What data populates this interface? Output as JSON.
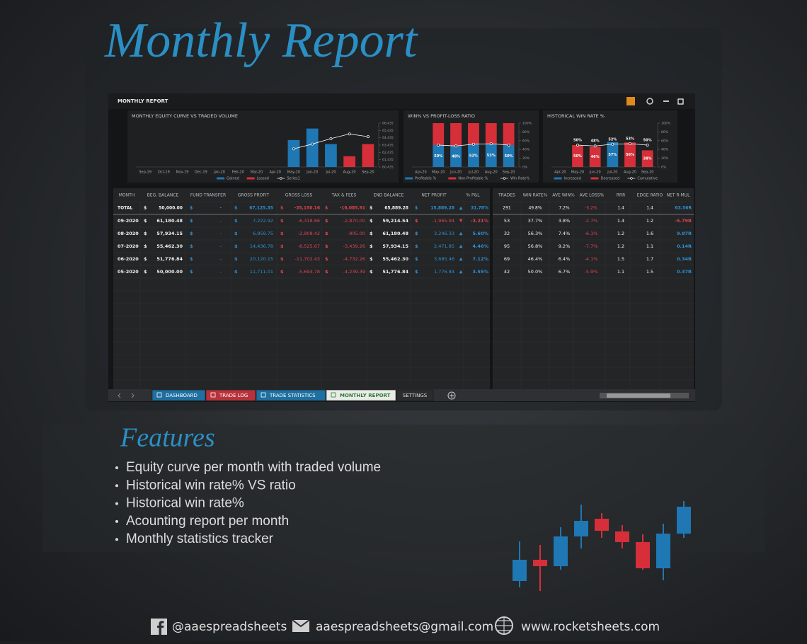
{
  "header": {
    "title": "Monthly Report"
  },
  "window": {
    "title": "MONTHLY REPORT"
  },
  "charts": [
    {
      "type": "combo",
      "title": "MONTHLY EQUITY CURVE VS TRADED VOLUME",
      "categories": [
        "Sep-19",
        "Oct-19",
        "Nov-19",
        "Dec-19",
        "Jan-20",
        "Feb-20",
        "Mar-20",
        "Apr-20",
        "May-20",
        "Jun-20",
        "Jul-20",
        "Aug-20",
        "Sep-20"
      ],
      "ylim": [
        60435,
        66435
      ],
      "yticks": [
        {
          "value": 60435,
          "label": "60,435"
        },
        {
          "value": 61435,
          "label": "61,435"
        },
        {
          "value": 62435,
          "label": "62,435"
        },
        {
          "value": 63435,
          "label": "63,435"
        },
        {
          "value": 64435,
          "label": "64,435"
        },
        {
          "value": 65435,
          "label": "65,435"
        },
        {
          "value": 66435,
          "label": "66,435"
        }
      ],
      "stacked": false,
      "series": [
        {
          "name": "Gained",
          "kind": "bar",
          "color": "#1f77b4",
          "values": [
            null,
            null,
            null,
            null,
            null,
            null,
            null,
            null,
            64127,
            65700,
            63575,
            null,
            null
          ]
        },
        {
          "name": "Lossed",
          "kind": "bar",
          "color": "#d62f3a",
          "values": [
            null,
            null,
            null,
            null,
            null,
            null,
            null,
            null,
            null,
            null,
            null,
            61910,
            63575
          ]
        },
        {
          "name": "Series1",
          "kind": "line",
          "color": "#ffffff",
          "values": [
            null,
            null,
            null,
            null,
            null,
            null,
            null,
            null,
            62925,
            63575,
            64315,
            64955,
            64585
          ]
        }
      ]
    },
    {
      "type": "combo",
      "title": "WIN% VS PROFIT-LOSS RATIO",
      "categories": [
        "Apr-20",
        "May-20",
        "Jun-20",
        "Jul-20",
        "Aug-20",
        "Sep-20"
      ],
      "ylim": [
        0,
        100
      ],
      "yticks": [
        {
          "value": 0,
          "label": "0%"
        },
        {
          "value": 20,
          "label": "20%"
        },
        {
          "value": 40,
          "label": "40%"
        },
        {
          "value": 60,
          "label": "60%"
        },
        {
          "value": 80,
          "label": "80%"
        },
        {
          "value": 100,
          "label": "100%"
        }
      ],
      "stacked": true,
      "series": [
        {
          "name": "Profitable %",
          "kind": "bar",
          "color": "#1f77b4",
          "values": [
            null,
            50,
            48,
            52,
            53,
            50
          ],
          "value_labels": [
            null,
            "50%",
            "48%",
            "52%",
            "53%",
            "50%"
          ]
        },
        {
          "name": "Non-Profitable %",
          "kind": "bar",
          "color": "#d62f3a",
          "values": [
            null,
            50,
            52,
            48,
            47,
            50
          ]
        },
        {
          "name": "Win Rate%",
          "kind": "line",
          "color": "#ffffff",
          "values": [
            null,
            50,
            48,
            52,
            53,
            50
          ]
        }
      ]
    },
    {
      "type": "combo",
      "title": "HISTORICAL WIN RATE %",
      "categories": [
        "Apr-20",
        "May-20",
        "Jun-20",
        "Jul-20",
        "Aug-20",
        "Sep-20"
      ],
      "ylim": [
        0,
        100
      ],
      "yticks": [
        {
          "value": 0,
          "label": "0%"
        },
        {
          "value": 20,
          "label": "20%"
        },
        {
          "value": 40,
          "label": "40%"
        },
        {
          "value": 60,
          "label": "60%"
        },
        {
          "value": 80,
          "label": "80%"
        },
        {
          "value": 100,
          "label": "100%"
        }
      ],
      "stacked": false,
      "series": [
        {
          "name": "Increased",
          "kind": "bar",
          "color": "#1f77b4",
          "values": [
            null,
            null,
            null,
            57,
            null,
            null
          ],
          "value_labels": [
            null,
            null,
            null,
            "57%",
            null,
            null
          ]
        },
        {
          "name": "Decreased",
          "kind": "bar",
          "color": "#d62f3a",
          "values": [
            null,
            50,
            46,
            null,
            56,
            38
          ],
          "value_labels": [
            null,
            "50%",
            "46%",
            null,
            "56%",
            "38%"
          ]
        },
        {
          "name": "Cumulative",
          "kind": "line",
          "color": "#ffffff",
          "values": [
            null,
            50,
            48,
            52,
            53,
            50
          ],
          "value_labels": [
            null,
            "50%",
            "48%",
            "52%",
            "53%",
            "50%"
          ]
        }
      ]
    }
  ],
  "table": {
    "currency": "$",
    "left_columns": [
      "MONTH",
      "BEG. BALANCE",
      "FUND TRANSFER",
      "GROSS PROFIT",
      "GROSS LOSS",
      "TAX & FEES",
      "END BALANCE",
      "NET PROFIT",
      "% P&L"
    ],
    "right_columns": [
      "TRADES",
      "WIN RATE%",
      "AVE WIN%",
      "AVE LOSS%",
      "RRR",
      "EDGE RATIO",
      "NET R-MUL"
    ],
    "rows": [
      {
        "left": [
          "TOTAL",
          "50,000.00",
          "-",
          "67,125.35",
          "-35,150.16",
          "-16,085.91",
          "65,889.28",
          "15,889.28",
          "31.78%"
        ],
        "trend": "▲",
        "right": [
          "291",
          "49.8%",
          "7.2%",
          "-5.2%",
          "1.4",
          "1.4",
          "63.56R"
        ]
      },
      {
        "left": [
          "09-2020",
          "61,180.48",
          "-",
          "7,222.92",
          "-6,318.86",
          "-2,870.00",
          "59,214.54",
          "-1,965.94",
          "-3.21%"
        ],
        "trend": "▼",
        "right": [
          "53",
          "37.7%",
          "3.8%",
          "-2.7%",
          "1.4",
          "1.2",
          "-5.79R"
        ]
      },
      {
        "left": [
          "08-2020",
          "57,934.15",
          "-",
          "6,959.75",
          "-2,908.42",
          "-805.00",
          "61,180.48",
          "3,246.33",
          "5.60%"
        ],
        "trend": "▲",
        "right": [
          "32",
          "56.3%",
          "7.4%",
          "-6.1%",
          "1.2",
          "1.6",
          "9.87R"
        ]
      },
      {
        "left": [
          "07-2020",
          "55,462.30",
          "-",
          "14,436.78",
          "-8,525.67",
          "-3,439.26",
          "57,934.15",
          "2,471.85",
          "4.46%"
        ],
        "trend": "▲",
        "right": [
          "95",
          "56.8%",
          "9.2%",
          "-7.7%",
          "1.2",
          "1.1",
          "0.14R"
        ]
      },
      {
        "left": [
          "06-2020",
          "51,776.84",
          "-",
          "20,120.15",
          "-11,702.43",
          "-4,732.26",
          "55,462.30",
          "3,685.46",
          "7.12%"
        ],
        "trend": "▲",
        "right": [
          "69",
          "46.4%",
          "6.4%",
          "-4.1%",
          "1.5",
          "1.7",
          "0.34R"
        ]
      },
      {
        "left": [
          "05-2020",
          "50,000.00",
          "-",
          "11,711.01",
          "-5,694.78",
          "-4,239.39",
          "51,776.84",
          "1,776.84",
          "3.55%"
        ],
        "trend": "▲",
        "right": [
          "42",
          "50.0%",
          "6.7%",
          "-5.9%",
          "1.1",
          "1.5",
          "0.37R"
        ]
      }
    ]
  },
  "tabs": [
    "DASHBOARD",
    "TRADE LOG",
    "TRADE STATISTICS",
    "MONTHLY REPORT",
    "SETTINGS"
  ],
  "features": {
    "title": "Features",
    "items": [
      "Equity curve per month with traded volume",
      "Historical win rate% VS ratio",
      "Historical win rate%",
      "Acounting report per month",
      "Monthly statistics tracker"
    ]
  },
  "footer": {
    "facebook": "@aaespreadsheets",
    "email": "aaespreadsheets@gmail.com",
    "website": "www.rocketsheets.com"
  }
}
